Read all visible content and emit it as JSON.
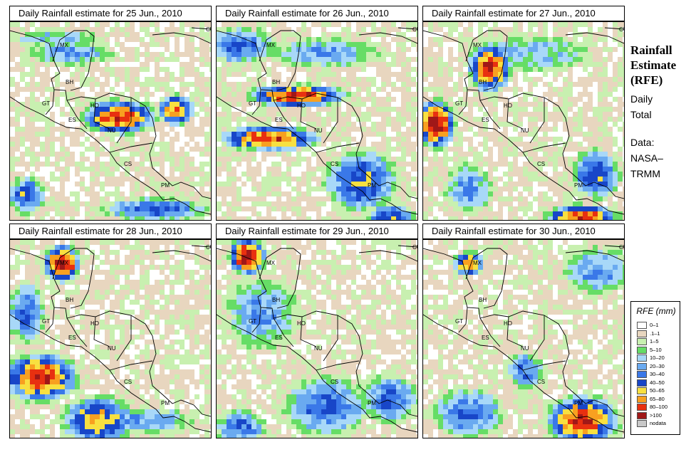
{
  "panels": [
    {
      "title": "Daily Rainfall estimate for  25 Jun., 2010"
    },
    {
      "title": "Daily Rainfall estimate for  26 Jun., 2010"
    },
    {
      "title": "Daily Rainfall estimate for  27 Jun., 2010"
    },
    {
      "title": "Daily Rainfall estimate for  28 Jun., 2010"
    },
    {
      "title": "Daily Rainfall estimate for  29 Jun., 2010"
    },
    {
      "title": "Daily Rainfall estimate for  30 Jun., 2010"
    }
  ],
  "country_labels": [
    "MX",
    "CU",
    "BH",
    "GT",
    "HO",
    "ES",
    "NU",
    "CS",
    "PM"
  ],
  "side": {
    "title_lines": [
      "Rainfall",
      "Estimate",
      "(RFE)"
    ],
    "desc_lines": [
      "Daily",
      "Total"
    ],
    "data_lines": [
      "Data:",
      "NASA–",
      "TRMM"
    ]
  },
  "legend": {
    "title": "RFE (mm)",
    "items": [
      {
        "label": "0–1",
        "color": "#ffffff"
      },
      {
        "label": ".1–1",
        "color": "#e8d6bf"
      },
      {
        "label": "1–5",
        "color": "#c8f0b0"
      },
      {
        "label": "5–10",
        "color": "#66dd66"
      },
      {
        "label": "10–20",
        "color": "#a8d8f8"
      },
      {
        "label": "20–30",
        "color": "#6aaaf0"
      },
      {
        "label": "30–40",
        "color": "#3a78e8"
      },
      {
        "label": "40–50",
        "color": "#1846c8"
      },
      {
        "label": "50–65",
        "color": "#f8e040"
      },
      {
        "label": "65–80",
        "color": "#f8a020"
      },
      {
        "label": "80–100",
        "color": "#e83010"
      },
      {
        "label": ">100",
        "color": "#a01818"
      },
      {
        "label": "nodata",
        "color": "#c8c8c8"
      }
    ]
  }
}
